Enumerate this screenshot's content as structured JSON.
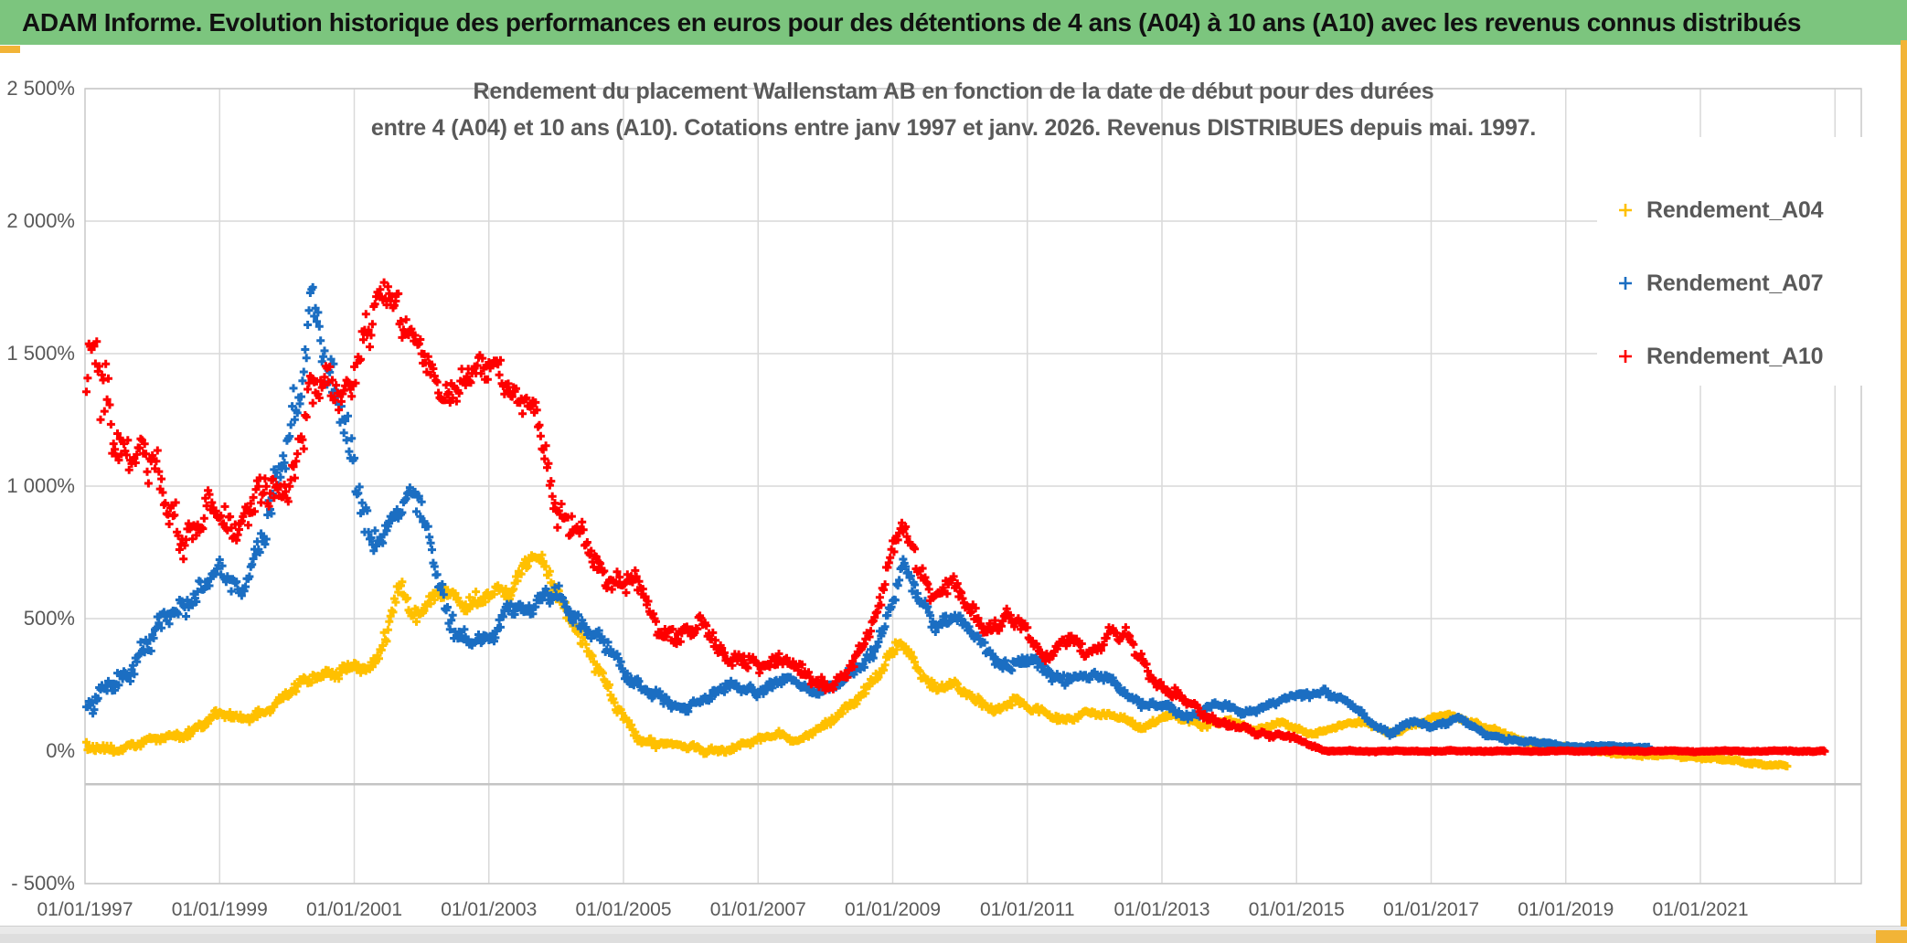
{
  "header": {
    "title": "ADAM Informe. Evolution historique des performances en euros pour des détentions de 4 ans (A04) à 10 ans (A10) avec les revenus connus distribués"
  },
  "colors": {
    "header_bg": "#7cc57e",
    "accent_gold": "#f2b437",
    "grid": "#d9d9d9",
    "axis_baseline": "#c4c4c4",
    "text_gray": "#595959",
    "series_a04": "#FFC000",
    "series_a07": "#1B6EC2",
    "series_a10": "#FE0000"
  },
  "chart_data": {
    "type": "scatter",
    "title_line1": "Rendement du placement Wallenstam AB en fonction de la date de début pour des durées",
    "title_line2": "entre 4 (A04) et 10 ans (A10). Cotations entre janv 1997 et janv. 2026. Revenus DISTRIBUES depuis mai. 1997.",
    "marker": "plus",
    "points_per_year": 52,
    "legend": {
      "position": "right"
    },
    "x_axis": {
      "range_years": [
        1997.0,
        2023.4
      ],
      "tick_years": [
        1997,
        1999,
        2001,
        2003,
        2005,
        2007,
        2009,
        2011,
        2013,
        2015,
        2017,
        2019,
        2021
      ],
      "tick_labels": [
        "01/01/1997",
        "01/01/1999",
        "01/01/2001",
        "01/01/2003",
        "01/01/2005",
        "01/01/2007",
        "01/01/2009",
        "01/01/2011",
        "01/01/2013",
        "01/01/2015",
        "01/01/2017",
        "01/01/2019",
        "01/01/2021"
      ],
      "gridline_years": [
        1999,
        2001,
        2003,
        2005,
        2007,
        2009,
        2011,
        2013,
        2015,
        2017,
        2019,
        2021,
        2023
      ]
    },
    "y_axis": {
      "range": [
        -500,
        2500
      ],
      "tick_values": [
        2500,
        2000,
        1500,
        1000,
        500,
        0,
        -500
      ],
      "tick_labels": [
        "2 500%",
        "2 000%",
        "1 500%",
        "1 000%",
        "500%",
        "0%",
        "- 500%"
      ],
      "gridline_values": [
        2500,
        2000,
        1500,
        1000,
        500,
        -500
      ],
      "baseline_value": -125
    },
    "series": [
      {
        "name": "Rendement_A04",
        "color": "#FFC000",
        "waypoints": [
          [
            1997.0,
            8,
            18
          ],
          [
            1997.5,
            12,
            16
          ],
          [
            1998.0,
            35,
            18
          ],
          [
            1998.5,
            70,
            20
          ],
          [
            1998.8,
            115,
            22
          ],
          [
            1999.0,
            140,
            22
          ],
          [
            1999.3,
            110,
            20
          ],
          [
            1999.7,
            160,
            22
          ],
          [
            2000.0,
            215,
            24
          ],
          [
            2000.4,
            275,
            24
          ],
          [
            2000.8,
            310,
            26
          ],
          [
            2001.0,
            330,
            26
          ],
          [
            2001.2,
            290,
            24
          ],
          [
            2001.5,
            430,
            40
          ],
          [
            2001.68,
            660,
            45
          ],
          [
            2001.85,
            520,
            40
          ],
          [
            2002.1,
            560,
            38
          ],
          [
            2002.35,
            615,
            38
          ],
          [
            2002.6,
            540,
            35
          ],
          [
            2002.85,
            575,
            35
          ],
          [
            2003.1,
            635,
            38
          ],
          [
            2003.35,
            600,
            35
          ],
          [
            2003.6,
            715,
            35
          ],
          [
            2003.78,
            730,
            35
          ],
          [
            2004.0,
            620,
            40
          ],
          [
            2004.3,
            470,
            38
          ],
          [
            2004.6,
            310,
            32
          ],
          [
            2004.9,
            160,
            26
          ],
          [
            2005.2,
            60,
            20
          ],
          [
            2005.5,
            25,
            16
          ],
          [
            2006.0,
            10,
            16
          ],
          [
            2006.5,
            5,
            14
          ],
          [
            2007.0,
            35,
            14
          ],
          [
            2007.3,
            70,
            14
          ],
          [
            2007.6,
            45,
            13
          ],
          [
            2008.0,
            90,
            15
          ],
          [
            2008.4,
            180,
            20
          ],
          [
            2008.8,
            300,
            26
          ],
          [
            2009.1,
            400,
            28
          ],
          [
            2009.35,
            310,
            24
          ],
          [
            2009.6,
            245,
            22
          ],
          [
            2009.9,
            260,
            20
          ],
          [
            2010.2,
            190,
            18
          ],
          [
            2010.5,
            150,
            16
          ],
          [
            2010.8,
            200,
            16
          ],
          [
            2011.1,
            160,
            15
          ],
          [
            2011.5,
            110,
            14
          ],
          [
            2011.9,
            150,
            14
          ],
          [
            2012.3,
            130,
            13
          ],
          [
            2012.7,
            85,
            12
          ],
          [
            2013.1,
            145,
            13
          ],
          [
            2013.6,
            90,
            12
          ],
          [
            2014.0,
            120,
            12
          ],
          [
            2014.4,
            80,
            11
          ],
          [
            2014.8,
            100,
            11
          ],
          [
            2015.2,
            70,
            10
          ],
          [
            2015.6,
            90,
            10
          ],
          [
            2016.0,
            110,
            11
          ],
          [
            2016.4,
            70,
            10
          ],
          [
            2016.8,
            100,
            10
          ],
          [
            2017.2,
            140,
            11
          ],
          [
            2017.5,
            120,
            10
          ],
          [
            2017.8,
            90,
            10
          ],
          [
            2018.2,
            50,
            9
          ],
          [
            2018.6,
            30,
            8
          ],
          [
            2019.0,
            15,
            7
          ],
          [
            2019.4,
            5,
            6
          ],
          [
            2019.8,
            -10,
            6
          ],
          [
            2020.2,
            -20,
            6
          ],
          [
            2020.6,
            -15,
            6
          ],
          [
            2021.0,
            -25,
            6
          ],
          [
            2021.4,
            -35,
            6
          ],
          [
            2021.8,
            -45,
            6
          ],
          [
            2022.3,
            -55,
            6
          ]
        ]
      },
      {
        "name": "Rendement_A07",
        "color": "#1B6EC2",
        "waypoints": [
          [
            1997.0,
            140,
            40
          ],
          [
            1997.3,
            220,
            45
          ],
          [
            1997.6,
            300,
            50
          ],
          [
            1998.0,
            420,
            55
          ],
          [
            1998.4,
            540,
            50
          ],
          [
            1998.7,
            610,
            50
          ],
          [
            1999.0,
            650,
            55
          ],
          [
            1999.3,
            600,
            50
          ],
          [
            1999.6,
            800,
            70
          ],
          [
            2000.0,
            1120,
            90
          ],
          [
            2000.2,
            1350,
            120
          ],
          [
            2000.35,
            1750,
            120
          ],
          [
            2000.5,
            1600,
            110
          ],
          [
            2000.7,
            1380,
            130
          ],
          [
            2001.0,
            1000,
            110
          ],
          [
            2001.3,
            800,
            80
          ],
          [
            2001.6,
            890,
            70
          ],
          [
            2001.9,
            950,
            60
          ],
          [
            2002.1,
            820,
            60
          ],
          [
            2002.4,
            520,
            50
          ],
          [
            2002.7,
            390,
            40
          ],
          [
            2003.0,
            420,
            40
          ],
          [
            2003.3,
            560,
            45
          ],
          [
            2003.6,
            510,
            40
          ],
          [
            2004.0,
            610,
            45
          ],
          [
            2004.4,
            480,
            40
          ],
          [
            2004.8,
            370,
            35
          ],
          [
            2005.1,
            290,
            30
          ],
          [
            2005.4,
            210,
            25
          ],
          [
            2005.8,
            160,
            22
          ],
          [
            2006.2,
            200,
            22
          ],
          [
            2006.6,
            240,
            22
          ],
          [
            2007.0,
            230,
            22
          ],
          [
            2007.4,
            270,
            22
          ],
          [
            2007.8,
            230,
            20
          ],
          [
            2008.2,
            250,
            22
          ],
          [
            2008.6,
            330,
            28
          ],
          [
            2008.9,
            500,
            40
          ],
          [
            2009.15,
            700,
            40
          ],
          [
            2009.4,
            560,
            35
          ],
          [
            2009.65,
            480,
            30
          ],
          [
            2009.9,
            520,
            30
          ],
          [
            2010.2,
            430,
            30
          ],
          [
            2010.6,
            330,
            28
          ],
          [
            2011.0,
            350,
            26
          ],
          [
            2011.4,
            270,
            24
          ],
          [
            2011.8,
            290,
            22
          ],
          [
            2012.2,
            270,
            22
          ],
          [
            2012.6,
            200,
            20
          ],
          [
            2013.0,
            160,
            18
          ],
          [
            2013.4,
            130,
            16
          ],
          [
            2013.8,
            180,
            16
          ],
          [
            2014.2,
            140,
            14
          ],
          [
            2014.6,
            180,
            14
          ],
          [
            2015.0,
            200,
            16
          ],
          [
            2015.4,
            230,
            16
          ],
          [
            2015.8,
            170,
            14
          ],
          [
            2016.1,
            110,
            12
          ],
          [
            2016.4,
            70,
            10
          ],
          [
            2016.7,
            110,
            10
          ],
          [
            2017.0,
            90,
            10
          ],
          [
            2017.4,
            130,
            10
          ],
          [
            2017.8,
            60,
            8
          ],
          [
            2018.2,
            45,
            8
          ],
          [
            2018.6,
            30,
            6
          ],
          [
            2019.0,
            20,
            5
          ],
          [
            2020.25,
            15,
            5
          ]
        ]
      },
      {
        "name": "Rendement_A10",
        "color": "#FE0000",
        "waypoints": [
          [
            1997.0,
            1280,
            150
          ],
          [
            1997.15,
            1400,
            180
          ],
          [
            1997.3,
            1280,
            150
          ],
          [
            1997.6,
            1150,
            120
          ],
          [
            1998.0,
            1050,
            110
          ],
          [
            1998.5,
            800,
            90
          ],
          [
            1998.8,
            880,
            70
          ],
          [
            1999.0,
            900,
            70
          ],
          [
            1999.3,
            850,
            60
          ],
          [
            1999.6,
            950,
            70
          ],
          [
            2000.0,
            1000,
            80
          ],
          [
            2000.3,
            1250,
            100
          ],
          [
            2000.6,
            1400,
            90
          ],
          [
            2000.9,
            1380,
            80
          ],
          [
            2001.2,
            1550,
            90
          ],
          [
            2001.5,
            1800,
            80
          ],
          [
            2001.7,
            1650,
            70
          ],
          [
            2002.0,
            1480,
            70
          ],
          [
            2002.3,
            1350,
            60
          ],
          [
            2002.6,
            1400,
            70
          ],
          [
            2002.9,
            1420,
            60
          ],
          [
            2003.1,
            1500,
            70
          ],
          [
            2003.4,
            1320,
            60
          ],
          [
            2003.7,
            1250,
            60
          ],
          [
            2004.0,
            950,
            70
          ],
          [
            2004.4,
            780,
            60
          ],
          [
            2004.8,
            650,
            50
          ],
          [
            2005.2,
            630,
            50
          ],
          [
            2005.5,
            480,
            40
          ],
          [
            2005.9,
            430,
            40
          ],
          [
            2006.2,
            470,
            40
          ],
          [
            2006.6,
            350,
            35
          ],
          [
            2007.0,
            310,
            35
          ],
          [
            2007.3,
            370,
            35
          ],
          [
            2007.7,
            280,
            30
          ],
          [
            2008.0,
            250,
            30
          ],
          [
            2008.4,
            300,
            30
          ],
          [
            2008.7,
            480,
            40
          ],
          [
            2009.0,
            780,
            50
          ],
          [
            2009.15,
            830,
            40
          ],
          [
            2009.4,
            680,
            40
          ],
          [
            2009.6,
            600,
            40
          ],
          [
            2009.85,
            650,
            40
          ],
          [
            2010.1,
            530,
            35
          ],
          [
            2010.4,
            460,
            35
          ],
          [
            2010.7,
            510,
            35
          ],
          [
            2011.0,
            440,
            35
          ],
          [
            2011.3,
            360,
            30
          ],
          [
            2011.6,
            420,
            30
          ],
          [
            2011.9,
            360,
            30
          ],
          [
            2012.2,
            450,
            35
          ],
          [
            2012.5,
            420,
            30
          ],
          [
            2012.8,
            310,
            30
          ],
          [
            2013.1,
            230,
            25
          ],
          [
            2013.5,
            160,
            20
          ],
          [
            2014.0,
            90,
            15
          ],
          [
            2014.5,
            70,
            12
          ],
          [
            2015.0,
            45,
            10
          ],
          [
            2015.3,
            15,
            6
          ],
          [
            2015.45,
            0,
            3
          ],
          [
            2022.85,
            0,
            3
          ]
        ]
      }
    ]
  }
}
